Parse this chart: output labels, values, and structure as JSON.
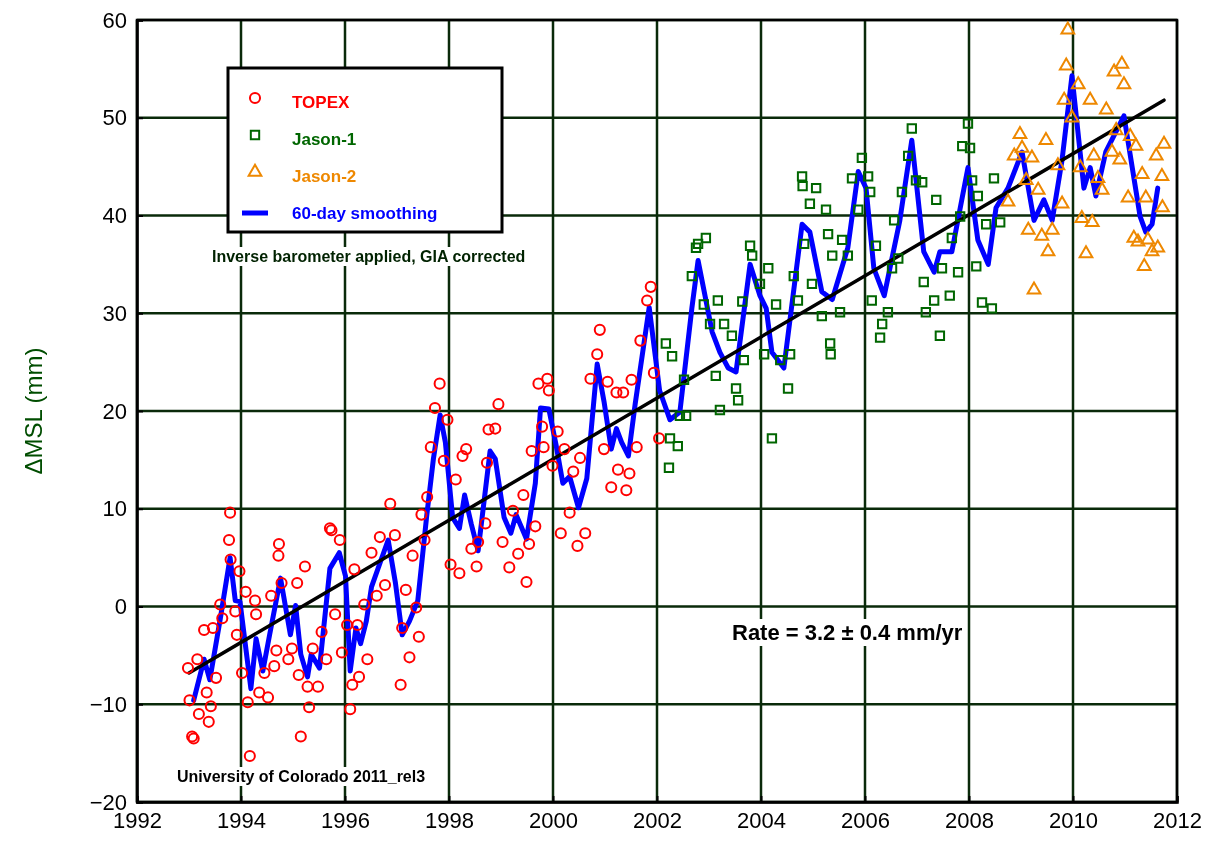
{
  "chart_data": {
    "type": "scatter",
    "ylabel": "ΔMSL (mm)",
    "xlim": [
      1992,
      2012
    ],
    "xticks": [
      1992,
      1994,
      1996,
      1998,
      2000,
      2002,
      2004,
      2006,
      2008,
      2010,
      2012
    ],
    "ylim": [
      -20,
      60
    ],
    "yticks": [
      -20,
      -10,
      0,
      10,
      20,
      30,
      40,
      50,
      60
    ],
    "grid": true,
    "legend": "top left",
    "annotations": [
      "Inverse barometer applied, GIA corrected",
      "Rate = 3.2 ± 0.4 mm/yr",
      "University of Colorado 2011_rel3"
    ],
    "series": [
      {
        "name": "TOPEX",
        "marker": "circle",
        "color": "#ff0000",
        "x": [
          1992.98,
          1993.01,
          1993.06,
          1993.09,
          1993.16,
          1993.19,
          1993.29,
          1993.34,
          1993.38,
          1993.42,
          1993.46,
          1993.52,
          1993.6,
          1993.64,
          1993.79,
          1993.77,
          1993.8,
          1993.89,
          1993.92,
          1993.97,
          1994.02,
          1994.09,
          1994.13,
          1994.17,
          1994.27,
          1994.29,
          1994.35,
          1994.45,
          1994.52,
          1994.58,
          1994.64,
          1994.68,
          1994.73,
          1994.72,
          1994.78,
          1994.91,
          1994.98,
          1995.08,
          1995.11,
          1995.15,
          1995.23,
          1995.28,
          1995.31,
          1995.38,
          1995.48,
          1995.55,
          1995.64,
          1995.71,
          1995.74,
          1995.81,
          1995.9,
          1995.94,
          1996.04,
          1996.1,
          1996.14,
          1996.18,
          1996.24,
          1996.27,
          1996.37,
          1996.43,
          1996.51,
          1996.61,
          1996.67,
          1996.77,
          1996.87,
          1996.96,
          1997.07,
          1997.1,
          1997.17,
          1997.24,
          1997.3,
          1997.37,
          1997.42,
          1997.47,
          1997.53,
          1997.58,
          1997.65,
          1997.73,
          1997.82,
          1997.9,
          1997.97,
          1998.03,
          1998.13,
          1998.2,
          1998.26,
          1998.33,
          1998.43,
          1998.53,
          1998.56,
          1998.7,
          1998.73,
          1998.76,
          1998.89,
          1998.95,
          1999.03,
          1999.16,
          1999.23,
          1999.33,
          1999.43,
          1999.49,
          1999.54,
          1999.59,
          1999.66,
          1999.72,
          1999.79,
          1999.82,
          1999.89,
          1999.92,
          1999.99,
          2000.09,
          2000.15,
          2000.22,
          2000.32,
          2000.39,
          2000.47,
          2000.52,
          2000.62,
          2000.72,
          2000.85,
          2000.9,
          2000.98,
          2001.05,
          2001.12,
          2001.22,
          2001.25,
          2001.35,
          2001.41,
          2001.47,
          2001.51,
          2001.61,
          2001.68,
          2001.81,
          2001.88,
          2001.94,
          2002.04
        ],
        "values": [
          -6.3,
          -9.6,
          -13.3,
          -13.5,
          -5.4,
          -11.0,
          -2.4,
          -8.8,
          -11.8,
          -10.2,
          -2.2,
          -7.3,
          0.2,
          -1.2,
          9.6,
          6.8,
          4.8,
          -0.5,
          -2.9,
          3.6,
          -6.8,
          1.5,
          -9.8,
          -15.3,
          0.6,
          -0.8,
          -8.8,
          -6.8,
          -9.3,
          1.1,
          -6.1,
          -4.5,
          6.4,
          5.2,
          2.4,
          -5.4,
          -4.3,
          2.4,
          -7.0,
          -13.3,
          4.1,
          -8.2,
          -10.3,
          -4.3,
          -8.2,
          -2.6,
          -5.4,
          8.0,
          7.8,
          -0.8,
          6.8,
          -4.7,
          -1.9,
          -10.5,
          -8.0,
          3.8,
          -1.9,
          -7.2,
          0.2,
          -5.4,
          5.5,
          1.1,
          7.1,
          2.2,
          10.5,
          7.3,
          -8.0,
          -2.2,
          1.7,
          -5.2,
          5.2,
          -0.1,
          -3.1,
          9.4,
          6.8,
          11.2,
          16.3,
          20.3,
          22.8,
          14.9,
          19.1,
          4.3,
          13.0,
          3.4,
          15.4,
          16.1,
          5.9,
          4.1,
          6.6,
          8.5,
          14.7,
          18.1,
          18.2,
          20.7,
          6.6,
          4.0,
          9.8,
          5.4,
          11.4,
          2.5,
          6.4,
          15.9,
          8.2,
          22.8,
          18.4,
          16.3,
          23.3,
          22.1,
          14.4,
          17.9,
          7.5,
          16.1,
          9.6,
          13.8,
          6.2,
          15.2,
          7.5,
          23.3,
          25.8,
          28.3,
          16.1,
          23.0,
          12.2,
          21.9,
          14.0,
          21.9,
          11.9,
          13.6,
          23.2,
          16.3,
          27.2,
          31.3,
          32.7,
          23.9,
          17.2
        ]
      },
      {
        "name": "Jason-1",
        "marker": "square",
        "color": "#006600",
        "x": [
          2002.17,
          2002.29,
          2002.25,
          2002.4,
          2002.23,
          2002.44,
          2002.56,
          2002.52,
          2002.67,
          2002.75,
          2002.79,
          2002.94,
          2002.9,
          2003.02,
          2003.17,
          2003.13,
          2003.21,
          2003.29,
          2003.44,
          2003.52,
          2003.56,
          2003.67,
          2003.64,
          2003.79,
          2003.83,
          2003.98,
          2004.06,
          2004.14,
          2004.21,
          2004.29,
          2004.37,
          2004.52,
          2004.56,
          2004.63,
          2004.71,
          2004.79,
          2004.8,
          2004.83,
          2004.94,
          2005.06,
          2004.98,
          2005.17,
          2005.25,
          2005.29,
          2005.37,
          2005.33,
          2005.34,
          2005.52,
          2005.56,
          2005.67,
          2005.75,
          2005.87,
          2005.94,
          2006.06,
          2006.1,
          2006.13,
          2006.21,
          2006.29,
          2006.33,
          2006.44,
          2006.52,
          2006.56,
          2006.64,
          2006.71,
          2006.83,
          2006.9,
          2006.98,
          2007.1,
          2007.13,
          2007.17,
          2007.33,
          2007.37,
          2007.44,
          2007.48,
          2007.63,
          2007.67,
          2007.79,
          2007.83,
          2007.87,
          2007.98,
          2008.02,
          2008.06,
          2008.14,
          2008.17,
          2008.25,
          2008.33,
          2008.44,
          2008.48,
          2008.6
        ],
        "values": [
          26.9,
          25.6,
          17.2,
          16.4,
          14.2,
          19.5,
          19.5,
          23.2,
          33.8,
          36.7,
          37.1,
          37.7,
          30.9,
          28.9,
          31.3,
          23.6,
          20.1,
          28.9,
          27.7,
          22.3,
          21.1,
          25.2,
          31.2,
          36.9,
          35.9,
          33.0,
          25.8,
          34.6,
          17.2,
          30.9,
          25.2,
          22.3,
          25.8,
          33.8,
          31.3,
          44.0,
          43.0,
          37.1,
          41.2,
          42.8,
          33.0,
          29.7,
          40.6,
          38.1,
          35.9,
          26.9,
          25.8,
          30.1,
          37.5,
          35.9,
          43.8,
          40.6,
          45.9,
          44.0,
          42.4,
          31.3,
          36.9,
          27.5,
          28.9,
          30.1,
          34.6,
          39.5,
          35.6,
          42.4,
          46.1,
          48.9,
          43.6,
          43.4,
          33.2,
          30.1,
          31.3,
          41.6,
          27.7,
          34.6,
          31.8,
          37.7,
          34.2,
          39.9,
          47.1,
          49.4,
          46.9,
          43.6,
          34.8,
          42.0,
          31.1,
          39.1,
          30.5,
          43.8,
          39.3
        ]
      },
      {
        "name": "Jason-2",
        "marker": "triangle",
        "color": "#ee8800",
        "x": [
          2008.75,
          2008.87,
          2008.98,
          2009.02,
          2009.1,
          2009.14,
          2009.21,
          2009.25,
          2009.33,
          2009.4,
          2009.48,
          2009.52,
          2009.6,
          2009.71,
          2009.79,
          2009.83,
          2009.87,
          2009.9,
          2009.98,
          2010.1,
          2010.14,
          2010.17,
          2010.25,
          2010.33,
          2010.37,
          2010.4,
          2010.48,
          2010.56,
          2010.64,
          2010.75,
          2010.79,
          2010.83,
          2010.9,
          2010.94,
          2010.98,
          2011.06,
          2011.1,
          2011.17,
          2011.21,
          2011.25,
          2011.33,
          2011.37,
          2011.4,
          2011.44,
          2011.52,
          2011.6,
          2011.63,
          2011.71,
          2011.75,
          2011.72
        ],
        "values": [
          41.4,
          46.1,
          48.3,
          46.9,
          43.6,
          38.5,
          45.9,
          32.4,
          42.6,
          37.9,
          47.7,
          36.3,
          38.5,
          45.1,
          41.2,
          51.8,
          55.3,
          59.0,
          50.0,
          53.4,
          44.9,
          39.7,
          36.1,
          51.8,
          39.3,
          46.1,
          43.8,
          42.6,
          50.8,
          46.5,
          54.7,
          48.7,
          45.7,
          55.5,
          53.4,
          41.8,
          48.1,
          37.7,
          47.1,
          37.3,
          44.2,
          34.8,
          41.8,
          37.5,
          36.3,
          46.1,
          36.7,
          44.0,
          47.3,
          40.8
        ]
      },
      {
        "name": "60-day smoothing",
        "type": "line",
        "marker": "none",
        "color": "#0000ff",
        "x": [
          1993.09,
          1993.29,
          1993.4,
          1993.6,
          1993.79,
          1993.89,
          1993.98,
          1994.19,
          1994.29,
          1994.42,
          1994.55,
          1994.76,
          1994.95,
          1995.05,
          1995.15,
          1995.28,
          1995.35,
          1995.51,
          1995.71,
          1995.89,
          1996.01,
          1996.1,
          1996.21,
          1996.3,
          1996.41,
          1996.51,
          1996.83,
          1996.97,
          1997.1,
          1997.24,
          1997.4,
          1997.57,
          1997.7,
          1997.83,
          1997.93,
          1998.07,
          1998.2,
          1998.3,
          1998.43,
          1998.56,
          1998.79,
          1998.89,
          1999.06,
          1999.19,
          1999.29,
          1999.49,
          1999.66,
          1999.76,
          1999.92,
          2000.06,
          2000.19,
          2000.32,
          2000.49,
          2000.65,
          2000.85,
          2000.98,
          2001.12,
          2001.22,
          2001.32,
          2001.45,
          2001.58,
          2001.85,
          2002.05,
          2002.25,
          2002.44,
          2002.67,
          2002.79,
          2003.06,
          2003.21,
          2003.37,
          2003.52,
          2003.79,
          2003.98,
          2004.1,
          2004.21,
          2004.44,
          2004.79,
          2004.94,
          2005.17,
          2005.37,
          2005.67,
          2005.87,
          2006.02,
          2006.17,
          2006.37,
          2006.67,
          2006.9,
          2007.13,
          2007.33,
          2007.44,
          2007.67,
          2007.98,
          2008.17,
          2008.37,
          2008.52,
          2008.75,
          2009.02,
          2009.25,
          2009.44,
          2009.6,
          2009.79,
          2009.98,
          2010.21,
          2010.33,
          2010.44,
          2010.63,
          2010.98,
          2011.29,
          2011.4,
          2011.52,
          2011.63
        ],
        "values": [
          -9.6,
          -5.4,
          -7.5,
          -1.3,
          5.0,
          0.6,
          0.5,
          -8.4,
          -3.3,
          -6.6,
          -2.9,
          2.9,
          -2.9,
          0.1,
          -4.9,
          -7.2,
          -4.9,
          -6.3,
          3.9,
          5.5,
          3.1,
          -6.6,
          -2.2,
          -3.8,
          -1.5,
          2.0,
          6.8,
          2.4,
          -2.9,
          -1.5,
          0.6,
          9.2,
          15.1,
          19.6,
          16.8,
          9.1,
          8.0,
          11.4,
          8.4,
          5.7,
          15.9,
          15.1,
          9.1,
          7.5,
          9.4,
          6.9,
          12.6,
          20.3,
          20.2,
          16.5,
          12.6,
          13.3,
          10.1,
          13.1,
          24.8,
          21.0,
          16.1,
          18.2,
          16.8,
          15.4,
          20.7,
          30.6,
          22.1,
          19.1,
          19.9,
          30.5,
          35.4,
          28.1,
          26.0,
          24.4,
          24.0,
          35.0,
          31.8,
          30.5,
          26.0,
          24.4,
          39.1,
          38.3,
          32.2,
          31.4,
          36.7,
          44.5,
          42.8,
          34.6,
          31.8,
          39.5,
          47.7,
          36.3,
          34.2,
          36.3,
          36.3,
          44.9,
          37.5,
          35.0,
          40.8,
          42.8,
          46.5,
          39.5,
          41.6,
          39.5,
          45.7,
          54.3,
          42.8,
          44.9,
          42.0,
          46.5,
          50.2,
          39.9,
          38.3,
          39.1,
          42.8
        ]
      },
      {
        "type": "line",
        "marker": "none",
        "color": "#000000",
        "x": [
          1993.0,
          2011.75
        ],
        "values": [
          -6.8,
          51.8
        ]
      }
    ]
  }
}
